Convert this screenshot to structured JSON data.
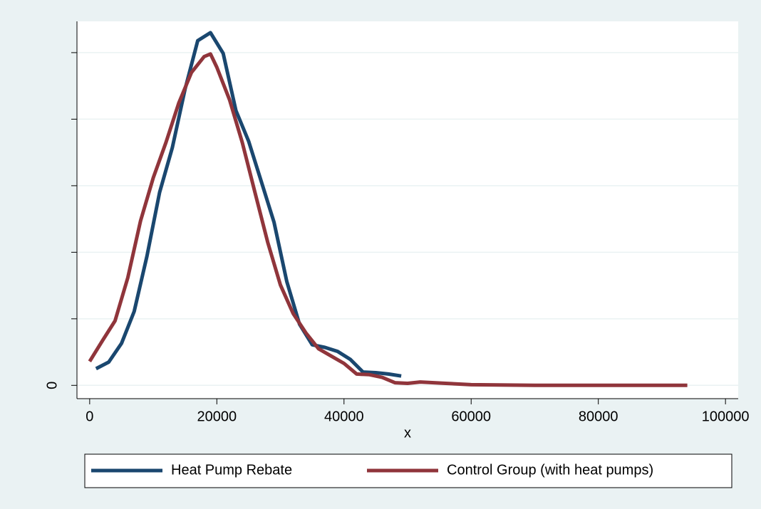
{
  "chart_data": {
    "type": "line",
    "x_label": "x",
    "xlim": [
      -2000,
      102000
    ],
    "xticks": [
      0,
      20000,
      40000,
      60000,
      80000,
      100000
    ],
    "ylim": [
      -2e-06,
      5.47e-05
    ],
    "yticks": [
      0
    ],
    "yticks_unlabeled": [
      1e-05,
      2e-05,
      3e-05,
      4e-05,
      5e-05
    ],
    "grid": true,
    "legend": "bottom",
    "series": [
      {
        "name": "Heat Pump Rebate",
        "color": "#1a476f",
        "x": [
          1000,
          3000,
          5000,
          7000,
          9000,
          11000,
          13000,
          15000,
          17000,
          19000,
          21000,
          23000,
          25000,
          27000,
          29000,
          31000,
          33000,
          35000,
          37000,
          39000,
          41000,
          43000,
          45000,
          47000,
          49000
        ],
        "values": [
          2.5e-06,
          3.5e-06,
          6.3e-06,
          1.11e-05,
          1.94e-05,
          2.9e-05,
          3.57e-05,
          4.45e-05,
          5.18e-05,
          5.3e-05,
          4.99e-05,
          4.13e-05,
          3.67e-05,
          3.06e-05,
          2.45e-05,
          1.56e-05,
          9.2e-06,
          6.1e-06,
          5.7e-06,
          5.1e-06,
          3.9e-06,
          2e-06,
          1.9e-06,
          1.7e-06,
          1.4e-06
        ]
      },
      {
        "name": "Control Group (with heat pumps)",
        "color": "#90353b",
        "x": [
          0,
          2000,
          4000,
          6000,
          8000,
          10000,
          12000,
          14000,
          16000,
          18000,
          19000,
          20000,
          22000,
          24000,
          26000,
          28000,
          30000,
          32000,
          34000,
          36000,
          38000,
          40000,
          42000,
          44000,
          46000,
          48000,
          50000,
          52000,
          56000,
          60000,
          70000,
          80000,
          94000
        ],
        "values": [
          3.6e-06,
          6.7e-06,
          9.7e-06,
          1.62e-05,
          2.47e-05,
          3.12e-05,
          3.65e-05,
          4.24e-05,
          4.7e-05,
          4.94e-05,
          4.98e-05,
          4.78e-05,
          4.29e-05,
          3.65e-05,
          2.9e-05,
          2.15e-05,
          1.51e-05,
          1.08e-05,
          7.9e-06,
          5.5e-06,
          4.4e-06,
          3.3e-06,
          1.7e-06,
          1.6e-06,
          1.2e-06,
          4e-07,
          3e-07,
          5e-07,
          3e-07,
          1e-07,
          0,
          0,
          0
        ]
      }
    ]
  }
}
